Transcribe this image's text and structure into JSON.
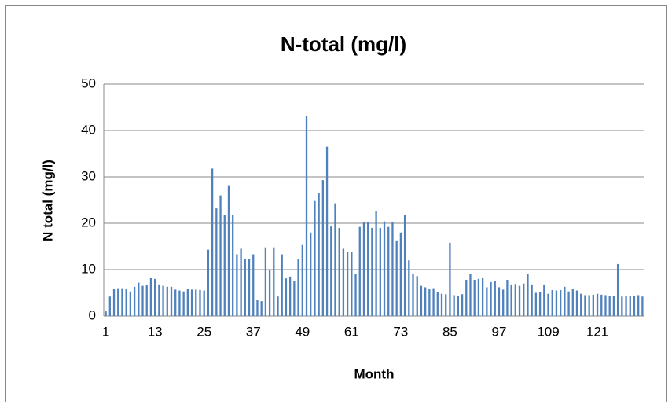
{
  "chart_data": {
    "type": "bar",
    "title": "N-total (mg/l)",
    "x_label": "Month",
    "y_label": "N total (mg/l)",
    "categories": [
      "1",
      null,
      null,
      null,
      null,
      null,
      null,
      null,
      null,
      null,
      null,
      null,
      "13",
      null,
      null,
      null,
      null,
      null,
      null,
      null,
      null,
      null,
      null,
      null,
      "25",
      null,
      null,
      null,
      null,
      null,
      null,
      null,
      null,
      null,
      null,
      null,
      "37",
      null,
      null,
      null,
      null,
      null,
      null,
      null,
      null,
      null,
      null,
      null,
      "49",
      null,
      null,
      null,
      null,
      null,
      null,
      null,
      null,
      null,
      null,
      null,
      "61",
      null,
      null,
      null,
      null,
      null,
      null,
      null,
      null,
      null,
      null,
      null,
      "73",
      null,
      null,
      null,
      null,
      null,
      null,
      null,
      null,
      null,
      null,
      null,
      "85",
      null,
      null,
      null,
      null,
      null,
      null,
      null,
      null,
      null,
      null,
      null,
      "97",
      null,
      null,
      null,
      null,
      null,
      null,
      null,
      null,
      null,
      null,
      null,
      "109",
      null,
      null,
      null,
      null,
      null,
      null,
      null,
      null,
      null,
      null,
      null,
      "121",
      null,
      null,
      null,
      null,
      null,
      null,
      null,
      null,
      null,
      null,
      null
    ],
    "values": [
      1,
      4.2,
      5.8,
      6,
      6,
      5.8,
      5.3,
      6.3,
      7.2,
      6.5,
      6.7,
      8.2,
      8,
      6.8,
      6.5,
      6.3,
      6.3,
      5.7,
      5.5,
      5.3,
      5.8,
      5.7,
      5.7,
      5.6,
      5.5,
      14.3,
      31.8,
      23.2,
      26,
      21.7,
      28.2,
      21.7,
      13.3,
      14.5,
      12.3,
      12.3,
      13.3,
      3.5,
      3.2,
      14.8,
      10,
      14.8,
      4.2,
      13.3,
      8.1,
      8.5,
      7.5,
      12.3,
      15.3,
      43.2,
      18,
      24.8,
      26.5,
      29.3,
      36.5,
      19.3,
      24.3,
      19,
      14.5,
      13.8,
      13.8,
      9,
      19.2,
      20.3,
      20.3,
      19,
      22.6,
      19,
      20.4,
      19.2,
      20.2,
      16.3,
      18,
      21.8,
      12,
      9.1,
      8.6,
      6.5,
      6.2,
      5.8,
      6,
      5.2,
      4.8,
      4.7,
      15.8,
      4.5,
      4.3,
      4.7,
      7.8,
      9,
      7.8,
      8,
      8.2,
      6.2,
      7.3,
      7.6,
      6.2,
      5.7,
      7.8,
      6.8,
      6.9,
      6.5,
      7,
      9,
      6.8,
      5,
      5.2,
      6.8,
      4.8,
      5.6,
      5.5,
      5.6,
      6.3,
      5.3,
      5.8,
      5.5,
      4.8,
      4.5,
      4.5,
      4.6,
      4.8,
      4.6,
      4.5,
      4.4,
      4.4,
      11.2,
      4.2,
      4.4,
      4.4,
      4.4,
      4.5,
      4.2
    ],
    "color": "#4f81bd",
    "ylim": [
      0,
      50
    ],
    "yticks": [
      0,
      10,
      20,
      30,
      40,
      50
    ],
    "grid": true
  }
}
